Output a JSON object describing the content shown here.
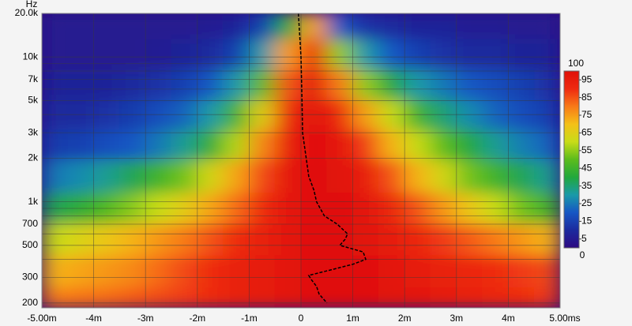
{
  "chart_data": {
    "type": "heatmap",
    "y_axis_label": "Hz",
    "xlim": [
      -5,
      5
    ],
    "xticks": [
      {
        "value": -5,
        "label": "-5.00m"
      },
      {
        "value": -4,
        "label": "-4m"
      },
      {
        "value": -3,
        "label": "-3m"
      },
      {
        "value": -2,
        "label": "-2m"
      },
      {
        "value": -1,
        "label": "-1m"
      },
      0,
      {
        "value": 1,
        "label": "1m"
      },
      {
        "value": 2,
        "label": "2m"
      },
      {
        "value": 3,
        "label": "3m"
      },
      {
        "value": 4,
        "label": "4m"
      },
      {
        "value": 5,
        "label": "5.00ms"
      }
    ],
    "ylim": [
      185,
      20000
    ],
    "log_y": true,
    "yticks": [
      200,
      300,
      500,
      700,
      {
        "value": 1000,
        "label": "1k"
      },
      {
        "value": 2000,
        "label": "2k"
      },
      {
        "value": 3000,
        "label": "3k"
      },
      {
        "value": 5000,
        "label": "5k"
      },
      {
        "value": 7000,
        "label": "7k"
      },
      {
        "value": 10000,
        "label": "10k"
      },
      {
        "value": 20000,
        "label": "20.0k"
      }
    ],
    "y_minor_ticks": [
      400,
      600,
      800,
      900,
      4000,
      6000,
      8000,
      9000
    ],
    "grid": true,
    "times": [
      -4.75,
      -4.25,
      -3.75,
      -3.25,
      -2.75,
      -2.25,
      -1.75,
      -1.25,
      -0.75,
      -0.25,
      0.25,
      0.75,
      1.25,
      1.75,
      2.25,
      2.75,
      3.25,
      3.75,
      4.25,
      4.75
    ],
    "frequencies": [
      200,
      330,
      560,
      900,
      1500,
      2500,
      4000,
      6500,
      10500,
      17000
    ],
    "z": [
      [
        80,
        81,
        82,
        84,
        86,
        88,
        90,
        94,
        96,
        98,
        100,
        100,
        100,
        99,
        98,
        96,
        94,
        92,
        90,
        88
      ],
      [
        72,
        74,
        76,
        78,
        82,
        86,
        90,
        94,
        96,
        98,
        100,
        100,
        100,
        98,
        96,
        94,
        92,
        90,
        88,
        86
      ],
      [
        60,
        64,
        68,
        72,
        76,
        80,
        85,
        90,
        94,
        98,
        100,
        100,
        99,
        96,
        92,
        88,
        84,
        80,
        76,
        72
      ],
      [
        38,
        42,
        48,
        54,
        60,
        66,
        74,
        82,
        90,
        97,
        100,
        100,
        98,
        92,
        85,
        76,
        68,
        60,
        52,
        46
      ],
      [
        25,
        28,
        32,
        38,
        45,
        52,
        62,
        74,
        86,
        97,
        100,
        99,
        95,
        85,
        72,
        62,
        52,
        45,
        38,
        32
      ],
      [
        14,
        15,
        18,
        20,
        25,
        32,
        42,
        58,
        78,
        95,
        100,
        97,
        88,
        72,
        60,
        50,
        40,
        32,
        26,
        22
      ],
      [
        10,
        10,
        12,
        14,
        18,
        22,
        30,
        45,
        65,
        92,
        99,
        92,
        75,
        60,
        45,
        35,
        28,
        22,
        18,
        15
      ],
      [
        8,
        8,
        8,
        10,
        12,
        15,
        20,
        30,
        50,
        85,
        98,
        80,
        55,
        40,
        30,
        25,
        20,
        18,
        15,
        12
      ],
      [
        5,
        5,
        5,
        5,
        6,
        8,
        10,
        15,
        30,
        75,
        90,
        55,
        30,
        20,
        15,
        12,
        10,
        10,
        8,
        8
      ],
      [
        5,
        5,
        5,
        5,
        5,
        5,
        6,
        8,
        15,
        40,
        75,
        20,
        12,
        10,
        8,
        8,
        6,
        6,
        5,
        5
      ]
    ],
    "colorscale": [
      "#2e0a82",
      "#1b2a9e",
      "#1656c4",
      "#1a9aa8",
      "#22a83c",
      "#5cbc1c",
      "#c8dc18",
      "#f4c018",
      "#f87a18",
      "#ee2a10",
      "#e01008"
    ],
    "clim": [
      0,
      100
    ],
    "cticks": [
      0,
      5,
      15,
      25,
      35,
      45,
      55,
      65,
      75,
      85,
      95,
      100
    ],
    "series": [
      {
        "color": "#000000",
        "x": [
          -0.05,
          0.0,
          0.02,
          0.03,
          0.1,
          0.15,
          0.25,
          0.3,
          0.45,
          0.7,
          0.9,
          0.85,
          0.75,
          1.2,
          1.25,
          1.0,
          0.6,
          0.15,
          0.2,
          0.3,
          0.35,
          0.5
        ],
        "values": [
          20000,
          10000,
          5000,
          3000,
          2000,
          1500,
          1200,
          1000,
          800,
          700,
          600,
          550,
          500,
          450,
          400,
          370,
          340,
          310,
          290,
          260,
          230,
          200
        ]
      }
    ]
  }
}
